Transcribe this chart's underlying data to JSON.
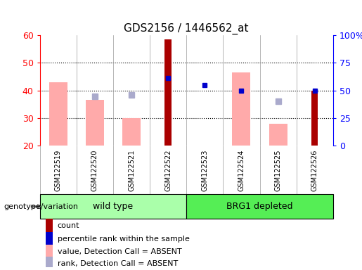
{
  "title": "GDS2156 / 1446562_at",
  "samples": [
    "GSM122519",
    "GSM122520",
    "GSM122521",
    "GSM122522",
    "GSM122523",
    "GSM122524",
    "GSM122525",
    "GSM122526"
  ],
  "ylim_left": [
    20,
    60
  ],
  "ylim_right": [
    0,
    100
  ],
  "yticks_left": [
    20,
    30,
    40,
    50,
    60
  ],
  "yticks_right": [
    0,
    25,
    50,
    75,
    100
  ],
  "yticklabels_right": [
    "0",
    "25",
    "50",
    "75",
    "100%"
  ],
  "value_absent": [
    43.0,
    36.5,
    30.0,
    null,
    null,
    46.5,
    28.0,
    null
  ],
  "rank_absent": [
    null,
    38.0,
    38.5,
    null,
    null,
    null,
    36.0,
    null
  ],
  "count_bars": [
    null,
    null,
    null,
    58.5,
    null,
    null,
    null,
    40.0
  ],
  "percentile_rank": [
    null,
    null,
    null,
    44.5,
    42.0,
    40.0,
    null,
    40.0
  ],
  "bar_bottom": 20,
  "count_color": "#aa0000",
  "percentile_color": "#0000cc",
  "value_absent_color": "#ffaaaa",
  "rank_absent_color": "#aaaacc",
  "group_wild_color": "#aaffaa",
  "group_brg_color": "#55ee55",
  "tick_bg_color": "#cccccc",
  "legend_items": [
    {
      "label": "count",
      "color": "#aa0000"
    },
    {
      "label": "percentile rank within the sample",
      "color": "#0000cc"
    },
    {
      "label": "value, Detection Call = ABSENT",
      "color": "#ffaaaa"
    },
    {
      "label": "rank, Detection Call = ABSENT",
      "color": "#aaaacc"
    }
  ]
}
